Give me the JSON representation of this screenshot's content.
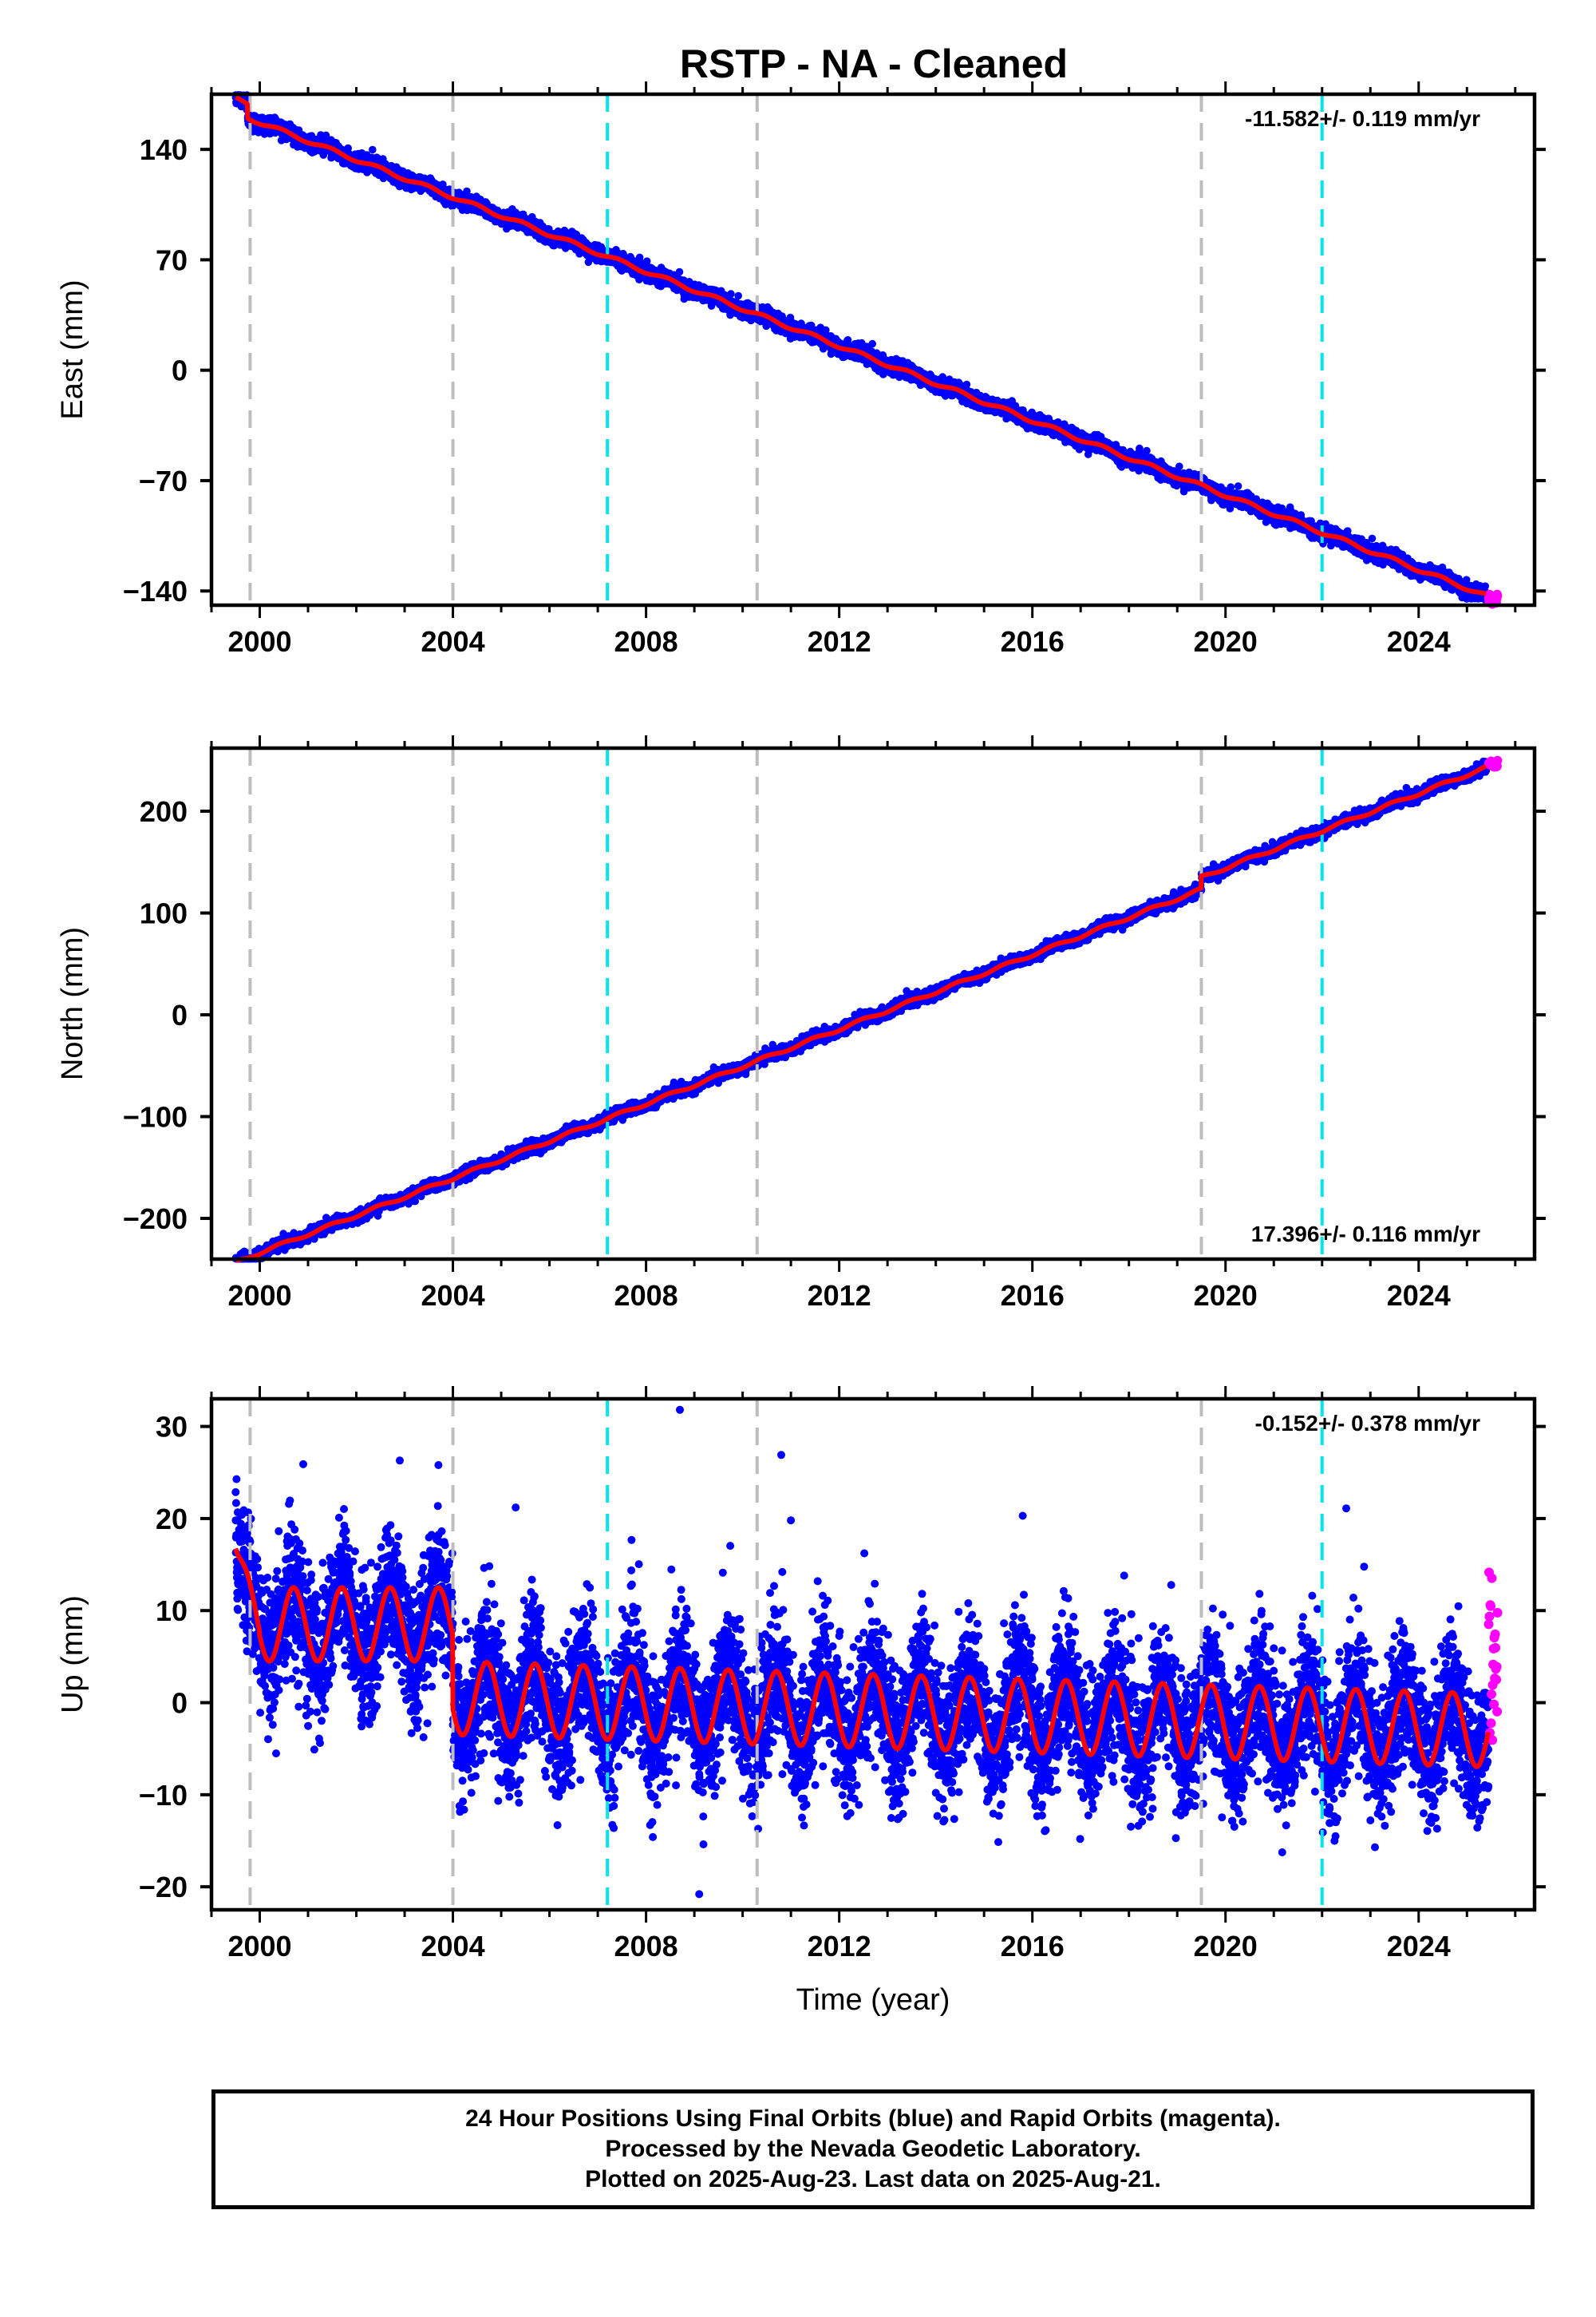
{
  "title": "RSTP  - NA - Cleaned",
  "colors": {
    "final_orbits": "#0000ff",
    "rapid_orbits": "#ff00ff",
    "model_fit": "#ff0000",
    "equipment_change": "#bdbdbd",
    "event_line": "#00e5ee"
  },
  "chart_data": [
    {
      "type": "scatter",
      "ylabel": "East (mm)",
      "xlabel": "",
      "ylim": [
        -149,
        175
      ],
      "yticks": [
        -140,
        -70,
        0,
        70,
        140
      ],
      "xlim": [
        1999.0,
        2026.4
      ],
      "xticks": [
        2000,
        2004,
        2008,
        2012,
        2016,
        2020,
        2024
      ],
      "rate_label": "-11.582+/- 0.119 mm/yr",
      "rate_position": "top-right",
      "grid": false,
      "series": [
        {
          "role": "final",
          "color": "#0000ff",
          "trend": {
            "start": [
              1999.5,
              163
            ],
            "end": [
              2025.4,
              -143
            ]
          },
          "scatter_mm": 2.2,
          "seasonal_mm": 1.2
        },
        {
          "role": "rapid",
          "color": "#ff00ff",
          "x_range": [
            2025.45,
            2025.64
          ],
          "y_center": -145,
          "scatter_mm": 1.5
        },
        {
          "role": "model",
          "color": "#ff0000",
          "seasonal_mm": 1.2
        }
      ],
      "offsets": [
        {
          "x": 1999.75,
          "dy": -9
        }
      ]
    },
    {
      "type": "scatter",
      "ylabel": "North (mm)",
      "xlabel": "",
      "ylim": [
        -240,
        262
      ],
      "yticks": [
        -200,
        -100,
        0,
        100,
        200
      ],
      "xlim": [
        1999.0,
        2026.4
      ],
      "xticks": [
        2000,
        2004,
        2008,
        2012,
        2016,
        2020,
        2024
      ],
      "rate_label": "17.396+/- 0.116 mm/yr",
      "rate_position": "bottom-right",
      "grid": false,
      "series": [
        {
          "role": "final",
          "color": "#0000ff",
          "trend": {
            "start": [
              1999.5,
              -231
            ],
            "end": [
              2025.4,
              243
            ]
          },
          "scatter_mm": 2.5,
          "seasonal_mm": 1.5
        },
        {
          "role": "rapid",
          "color": "#ff00ff",
          "x_range": [
            2025.45,
            2025.64
          ],
          "y_center": 246,
          "scatter_mm": 2
        },
        {
          "role": "model",
          "color": "#ff0000",
          "seasonal_mm": 1.5
        }
      ],
      "offsets": [
        {
          "x": 2019.5,
          "dy": 12
        }
      ]
    },
    {
      "type": "scatter",
      "ylabel": "Up (mm)",
      "xlabel": "Time (year)",
      "ylim": [
        -22.5,
        33
      ],
      "yticks": [
        -20,
        -10,
        0,
        10,
        20,
        30
      ],
      "xlim": [
        1999.0,
        2026.4
      ],
      "xticks": [
        2000,
        2004,
        2008,
        2012,
        2016,
        2020,
        2024
      ],
      "rate_label": "-0.152+/- 0.378 mm/yr",
      "rate_position": "top-right",
      "grid": false,
      "series": [
        {
          "role": "final",
          "color": "#0000ff",
          "scatter_mm": 3.6,
          "seasonal_mm": 4.0,
          "segments": [
            {
              "x_range": [
                1999.5,
                2004.0
              ],
              "level": 8.5
            },
            {
              "x_range": [
                2004.0,
                2025.45
              ],
              "level": 0.5,
              "end_level": -3.0
            }
          ]
        },
        {
          "role": "rapid",
          "color": "#ff00ff",
          "x_range": [
            2025.45,
            2025.64
          ],
          "y_center": 4,
          "scatter_mm": 4
        },
        {
          "role": "model",
          "color": "#ff0000",
          "seasonal_mm": 4.0
        }
      ],
      "outliers": [
        [
          2008.7,
          31.8
        ],
        [
          2009.1,
          -20.8
        ],
        [
          2010.8,
          26.9
        ],
        [
          2000.9,
          25.9
        ],
        [
          2002.9,
          26.3
        ],
        [
          2003.7,
          25.8
        ],
        [
          2011.0,
          19.8
        ],
        [
          2017.9,
          13.8
        ],
        [
          2015.8,
          20.3
        ],
        [
          2005.3,
          21.2
        ],
        [
          2022.5,
          21.1
        ]
      ]
    }
  ],
  "vertical_lines": [
    {
      "x": 1999.8,
      "kind": "equipment"
    },
    {
      "x": 2004.0,
      "kind": "equipment"
    },
    {
      "x": 2007.2,
      "kind": "event"
    },
    {
      "x": 2010.3,
      "kind": "equipment"
    },
    {
      "x": 2019.5,
      "kind": "equipment"
    },
    {
      "x": 2022.0,
      "kind": "event"
    }
  ],
  "footer": {
    "line1": "24 Hour Positions Using Final Orbits (blue) and Rapid Orbits (magenta).",
    "line2": "Processed by the Nevada Geodetic Laboratory.",
    "line3": "Plotted on 2025-Aug-23. Last data on 2025-Aug-21."
  }
}
